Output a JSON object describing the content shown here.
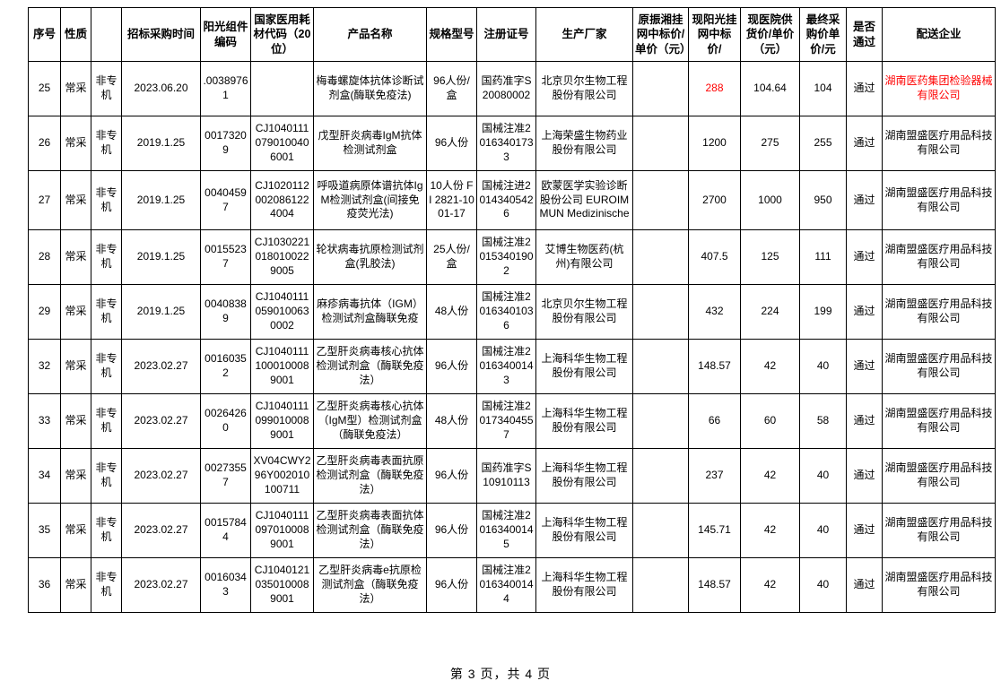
{
  "colors": {
    "background": "#ffffff",
    "grid_line": "#000000",
    "text": "#000000",
    "highlight_red": "#ff0000"
  },
  "footer": {
    "page_indicator": "第 3 页，共 4 页"
  },
  "table": {
    "headers": [
      "序号",
      "性质",
      "",
      "招标采购时间",
      "阳光组件编码",
      "国家医用耗材代码（20位）",
      "产品名称",
      "规格型号",
      "注册证号",
      "生产厂家",
      "原振湘挂网中标价/单价（元）",
      "现阳光挂网中标价/",
      "现医院供货价/单价（元）",
      "最终采购价单价/元",
      "是否通过",
      "配送企业"
    ],
    "rows": [
      {
        "cells": [
          "25",
          "常采",
          "非专机",
          "2023.06.20",
          ".00389761",
          "",
          "梅毒螺旋体抗体诊断试剂盒(酶联免疫法)",
          "96人份/盒",
          "国药准字S20080002",
          "北京贝尔生物工程股份有限公司",
          "",
          "288",
          "104.64",
          "104",
          "通过",
          "湖南医药集团检验器械有限公司"
        ],
        "red_cells": [
          11,
          15
        ]
      },
      {
        "cells": [
          "26",
          "常采",
          "非专机",
          "2019.1.25",
          "00173209",
          "CJ10401110790100406001",
          "戊型肝炎病毒IgM抗体检测试剂盒",
          "96人份",
          "国械注准20163401733",
          "上海荣盛生物药业股份有限公司",
          "",
          "1200",
          "275",
          "255",
          "通过",
          "湖南盟盛医疗用品科技有限公司"
        ],
        "red_cells": []
      },
      {
        "cells": [
          "27",
          "常采",
          "非专机",
          "2019.1.25",
          "00404597",
          "CJ10201120020861224004",
          "呼吸道病原体谱抗体IgM检测试剂盒(间接免疫荧光法)",
          "10人份 FI 2821-1001-17",
          "国械注进20143405426",
          "欧蒙医学实验诊断股份公司 EUROIMMUN Medizinische",
          "",
          "2700",
          "1000",
          "950",
          "通过",
          "湖南盟盛医疗用品科技有限公司"
        ],
        "red_cells": []
      },
      {
        "cells": [
          "28",
          "常采",
          "非专机",
          "2019.1.25",
          "00155237",
          "CJ10302210180100229005",
          "轮状病毒抗原检测试剂盒(乳胶法)",
          "25人份/盒",
          "国械注准20153401902",
          "艾博生物医药(杭州)有限公司",
          "",
          "407.5",
          "125",
          "111",
          "通过",
          "湖南盟盛医疗用品科技有限公司"
        ],
        "red_cells": []
      },
      {
        "cells": [
          "29",
          "常采",
          "非专机",
          "2019.1.25",
          "00408389",
          "CJ10401110590100630002",
          "麻疹病毒抗体（IGM）检测试剂盒酶联免疫",
          "48人份",
          "国械注准20163401036",
          "北京贝尔生物工程股份有限公司",
          "",
          "432",
          "224",
          "199",
          "通过",
          "湖南盟盛医疗用品科技有限公司"
        ],
        "red_cells": []
      },
      {
        "cells": [
          "32",
          "常采",
          "非专机",
          "2023.02.27",
          "00160352",
          "CJ10401111000100089001",
          "乙型肝炎病毒核心抗体检测试剂盒（酶联免疫法）",
          "96人份",
          "国械注准20163400143",
          "上海科华生物工程股份有限公司",
          "",
          "148.57",
          "42",
          "40",
          "通过",
          "湖南盟盛医疗用品科技有限公司"
        ],
        "red_cells": []
      },
      {
        "cells": [
          "33",
          "常采",
          "非专机",
          "2023.02.27",
          "00264260",
          "CJ10401110990100089001",
          "乙型肝炎病毒核心抗体（IgM型）检测试剂盒（酶联免疫法）",
          "48人份",
          "国械注准20173404557",
          "上海科华生物工程股份有限公司",
          "",
          "66",
          "60",
          "58",
          "通过",
          "湖南盟盛医疗用品科技有限公司"
        ],
        "red_cells": []
      },
      {
        "cells": [
          "34",
          "常采",
          "非专机",
          "2023.02.27",
          "00273557",
          "XV04CWY296Y002010100711",
          "乙型肝炎病毒表面抗原检测试剂盒（酶联免疫法）",
          "96人份",
          "国药准字S10910113",
          "上海科华生物工程股份有限公司",
          "",
          "237",
          "42",
          "40",
          "通过",
          "湖南盟盛医疗用品科技有限公司"
        ],
        "red_cells": []
      },
      {
        "cells": [
          "35",
          "常采",
          "非专机",
          "2023.02.27",
          "00157844",
          "CJ10401110970100089001",
          "乙型肝炎病毒表面抗体检测试剂盒（酶联免疫法）",
          "96人份",
          "国械注准20163400145",
          "上海科华生物工程股份有限公司",
          "",
          "145.71",
          "42",
          "40",
          "通过",
          "湖南盟盛医疗用品科技有限公司"
        ],
        "red_cells": []
      },
      {
        "cells": [
          "36",
          "常采",
          "非专机",
          "2023.02.27",
          "00160343",
          "CJ10401210350100089001",
          "乙型肝炎病毒e抗原检测试剂盒（酶联免疫法）",
          "96人份",
          "国械注准20163400144",
          "上海科华生物工程股份有限公司",
          "",
          "148.57",
          "42",
          "40",
          "通过",
          "湖南盟盛医疗用品科技有限公司"
        ],
        "red_cells": []
      }
    ]
  }
}
